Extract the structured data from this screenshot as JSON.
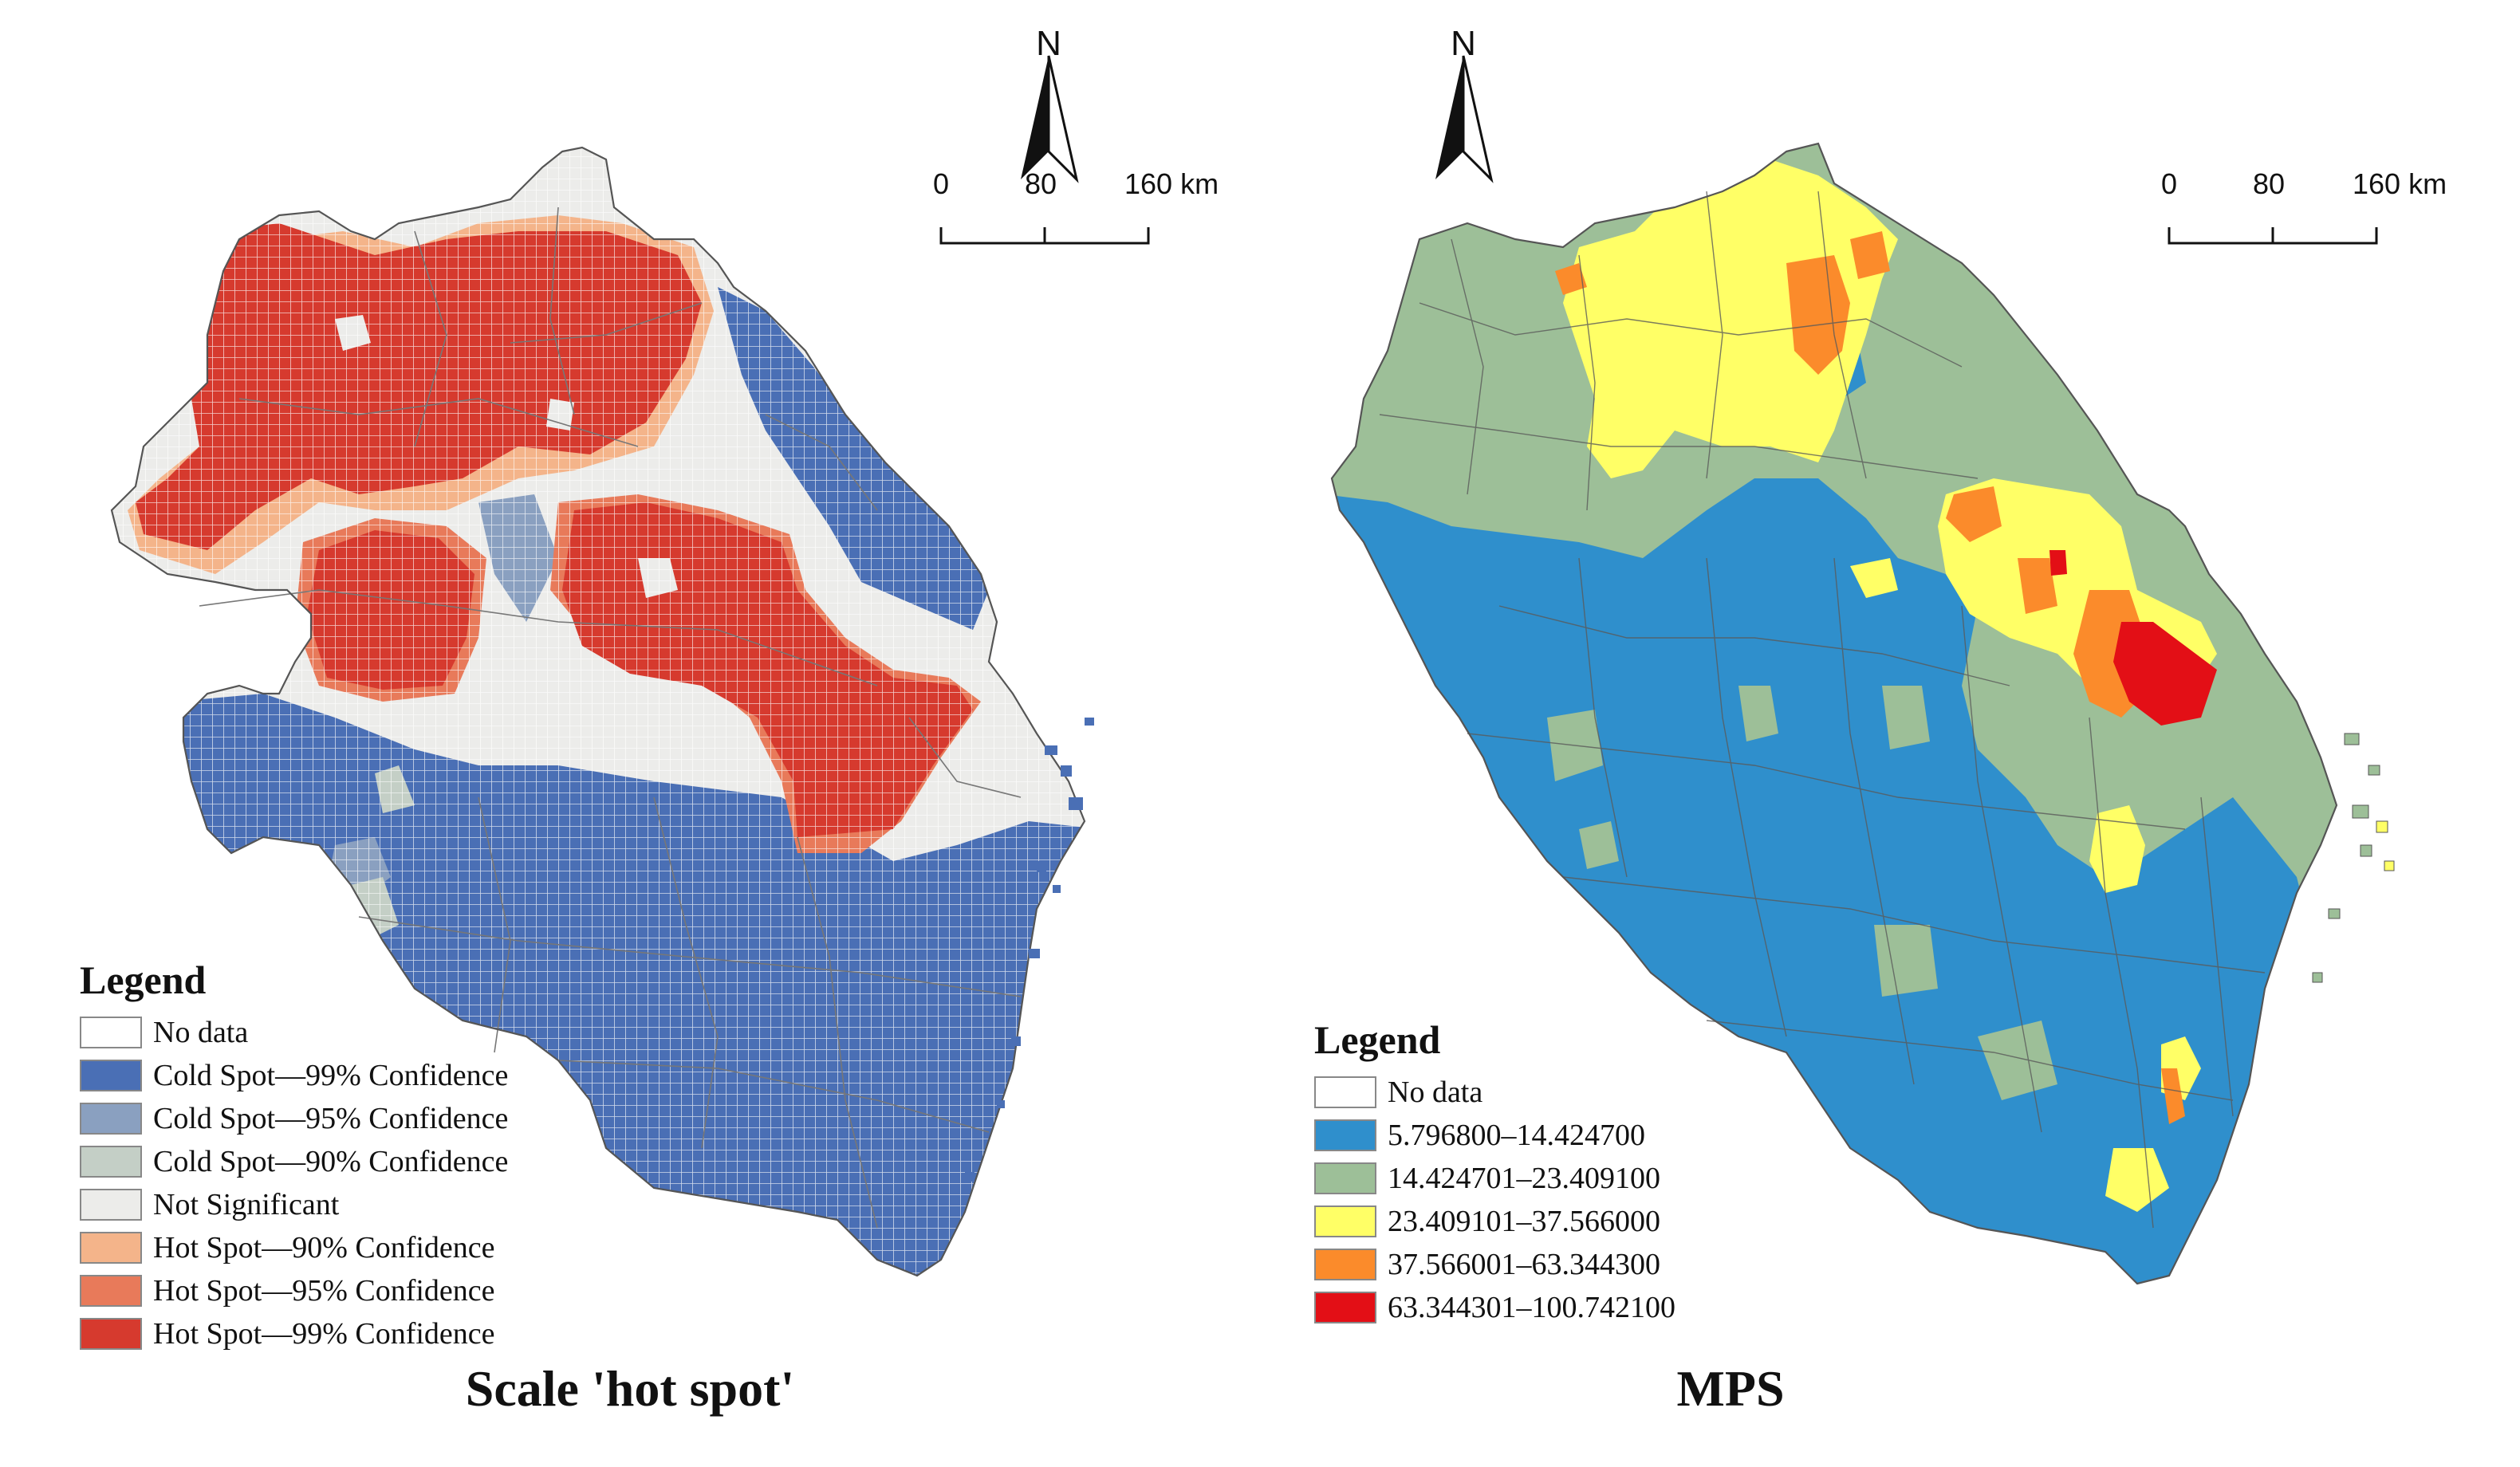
{
  "colors": {
    "no_data": "#ffffff",
    "cold99": "#4a6fb5",
    "cold95": "#8aa0c0",
    "cold90": "#c4cfc6",
    "not_sig": "#ececea",
    "hot90": "#f4b48a",
    "hot95": "#e87a5a",
    "hot99": "#d63a2e",
    "mps1": "#2f8fcc",
    "mps2": "#9dbf98",
    "mps3": "#ffff66",
    "mps4": "#fb8b2b",
    "mps5": "#e30f16",
    "boundary": "#555555"
  },
  "left_map": {
    "title": "Scale 'hot spot'",
    "north_label": "N",
    "scale": {
      "ticks": [
        "0",
        "80",
        "160 km"
      ]
    },
    "legend": {
      "title": "Legend",
      "items": [
        {
          "label": "No data",
          "color_key": "no_data"
        },
        {
          "label": "Cold Spot—99% Confidence",
          "color_key": "cold99"
        },
        {
          "label": "Cold Spot—95% Confidence",
          "color_key": "cold95"
        },
        {
          "label": "Cold Spot—90% Confidence",
          "color_key": "cold90"
        },
        {
          "label": "Not Significant",
          "color_key": "not_sig"
        },
        {
          "label": "Hot Spot—90% Confidence",
          "color_key": "hot90"
        },
        {
          "label": "Hot Spot—95% Confidence",
          "color_key": "hot95"
        },
        {
          "label": "Hot Spot—99% Confidence",
          "color_key": "hot99"
        }
      ]
    }
  },
  "right_map": {
    "title": "MPS",
    "north_label": "N",
    "scale": {
      "ticks": [
        "0",
        "80",
        "160 km"
      ]
    },
    "legend": {
      "title": "Legend",
      "items": [
        {
          "label": "No data",
          "color_key": "no_data"
        },
        {
          "label": "5.796800–14.424700",
          "color_key": "mps1"
        },
        {
          "label": "14.424701–23.409100",
          "color_key": "mps2"
        },
        {
          "label": "23.409101–37.566000",
          "color_key": "mps3"
        },
        {
          "label": "37.566001–63.344300",
          "color_key": "mps4"
        },
        {
          "label": "63.344301–100.742100",
          "color_key": "mps5"
        }
      ]
    }
  }
}
